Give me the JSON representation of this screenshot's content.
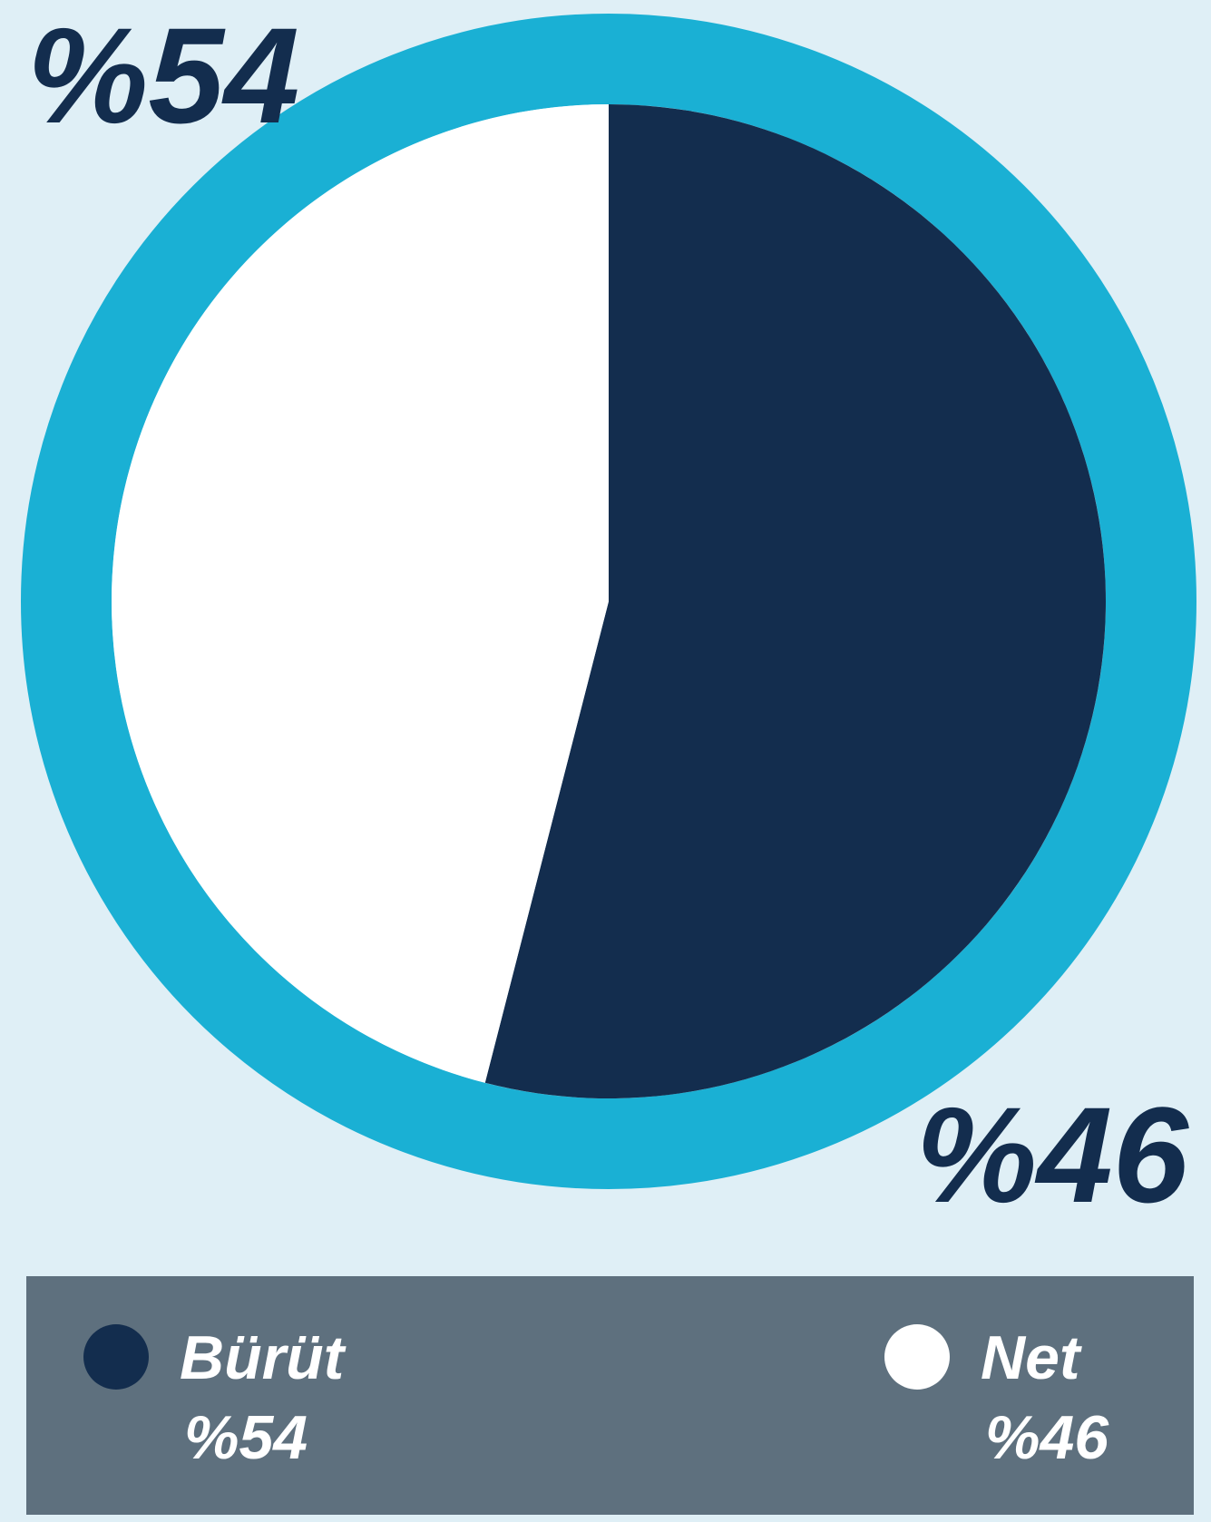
{
  "chart_data": {
    "type": "pie",
    "categories": [
      "Bürüt",
      "Net"
    ],
    "values": [
      54,
      46
    ],
    "value_labels": [
      "%54",
      "%46"
    ],
    "colors": [
      "#132d4e",
      "#ffffff"
    ],
    "ring_color": "#1ab0d4",
    "legend": "bottom"
  }
}
